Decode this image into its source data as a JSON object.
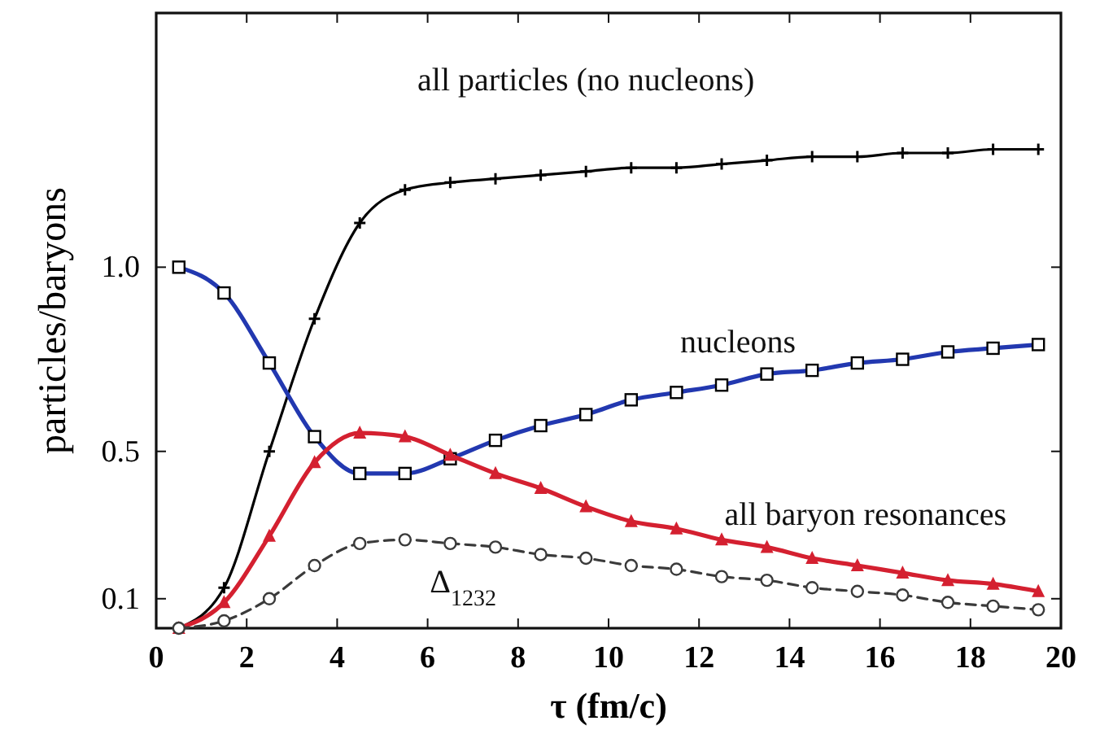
{
  "chart_data": {
    "type": "line",
    "xlabel": "τ (fm/c)",
    "ylabel": "particles/baryons",
    "x": [
      0.5,
      1.5,
      2.5,
      3.5,
      4.5,
      5.5,
      6.5,
      7.5,
      8.5,
      9.5,
      10.5,
      11.5,
      12.5,
      13.5,
      14.5,
      15.5,
      16.5,
      17.5,
      18.5,
      19.5
    ],
    "xlim": [
      0,
      20
    ],
    "xticks": [
      0,
      2,
      4,
      6,
      8,
      10,
      12,
      14,
      16,
      18,
      20
    ],
    "ylim": [
      0.02,
      1.69
    ],
    "yticks": [
      0.1,
      0.5,
      {
        "value": 1,
        "label": "1.0"
      }
    ],
    "grid": false,
    "line_style": "solid",
    "series": [
      {
        "name": "all particles (no nucleons)",
        "color": "#000000",
        "marker": "cross",
        "values": [
          0.02,
          0.13,
          0.5,
          0.86,
          1.12,
          1.21,
          1.23,
          1.24,
          1.25,
          1.26,
          1.27,
          1.27,
          1.28,
          1.29,
          1.3,
          1.3,
          1.31,
          1.31,
          1.32,
          1.32
        ]
      },
      {
        "name": "nucleons",
        "color": "#2238b0",
        "marker": "square",
        "values": [
          1.0,
          0.93,
          0.74,
          0.54,
          0.44,
          0.44,
          0.48,
          0.53,
          0.57,
          0.6,
          0.64,
          0.66,
          0.68,
          0.71,
          0.72,
          0.74,
          0.75,
          0.77,
          0.78,
          0.79
        ]
      },
      {
        "name": "all baryon resonances",
        "color": "#d42030",
        "marker": "triangle",
        "values": [
          0.02,
          0.09,
          0.27,
          0.47,
          0.55,
          0.54,
          0.49,
          0.44,
          0.4,
          0.35,
          0.31,
          0.29,
          0.26,
          0.24,
          0.21,
          0.19,
          0.17,
          0.15,
          0.14,
          0.12
        ]
      },
      {
        "name": "Δ$_{1232}$",
        "color": "#3a3a3a",
        "marker": "circle",
        "line_style": "dashed",
        "values": [
          0.02,
          0.04,
          0.1,
          0.19,
          0.25,
          0.26,
          0.25,
          0.24,
          0.22,
          0.21,
          0.19,
          0.18,
          0.16,
          0.15,
          0.13,
          0.12,
          0.11,
          0.09,
          0.08,
          0.07
        ]
      }
    ]
  }
}
